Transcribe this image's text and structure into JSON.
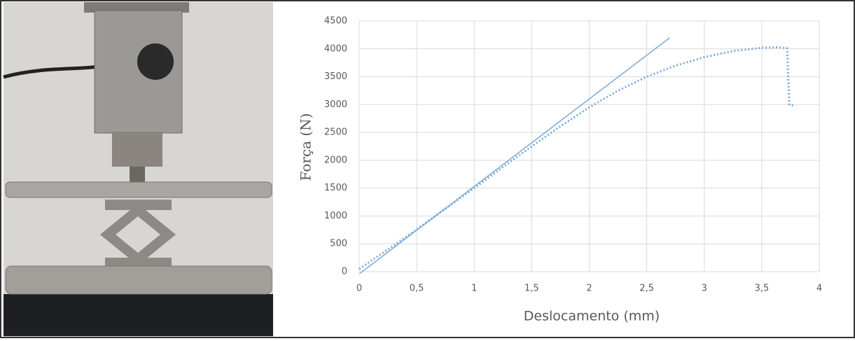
{
  "chart_data": {
    "type": "line",
    "xlabel": "Deslocamento (mm)",
    "ylabel": "Força (N)",
    "xlim": [
      0,
      4
    ],
    "xticks": [
      0,
      {
        "value": 0.5,
        "label": "0,5"
      },
      1,
      {
        "value": 1.5,
        "label": "1,5"
      },
      2,
      {
        "value": 2.5,
        "label": "2,5"
      },
      3,
      {
        "value": 3.5,
        "label": "3,5"
      },
      4
    ],
    "ylim": [
      0,
      4500
    ],
    "yticks": [
      0,
      500,
      1000,
      1500,
      2000,
      2500,
      3000,
      3500,
      4000,
      4500
    ],
    "grid": true,
    "series": [
      {
        "color": "#7aaad8",
        "line_style": "solid",
        "x": [
          0,
          2.7
        ],
        "values": [
          -40,
          4200
        ]
      },
      {
        "color": "#7aaad8",
        "line_style": "dotted",
        "x": [
          0,
          0.25,
          0.5,
          0.75,
          1,
          1.25,
          1.5,
          1.75,
          2,
          2.25,
          2.5,
          2.75,
          3,
          3.25,
          3.5,
          3.65,
          3.72,
          3.73,
          3.74,
          3.78
        ],
        "values": [
          50,
          400,
          760,
          1130,
          1500,
          1880,
          2250,
          2610,
          2950,
          3250,
          3500,
          3700,
          3850,
          3960,
          4020,
          4030,
          4010,
          3500,
          3000,
          2980
        ]
      }
    ]
  }
}
